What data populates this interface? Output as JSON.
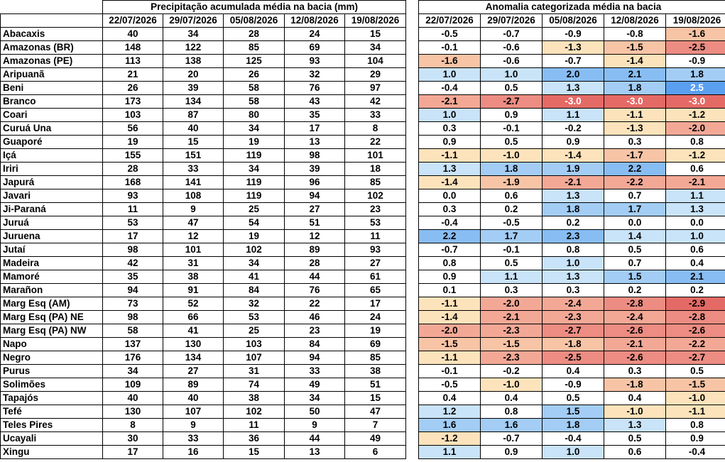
{
  "precip_title": "Precipitação acumulada média na bacia (mm)",
  "anom_title": "Anomalia categorizada média na bacia",
  "dates": [
    "22/07/2026",
    "29/07/2026",
    "05/08/2026",
    "12/08/2026",
    "19/08/2026"
  ],
  "rows": [
    {
      "name": "Abacaxis",
      "precip": [
        "40",
        "34",
        "28",
        "24",
        "15"
      ],
      "anom": [
        "-0.5",
        "-0.7",
        "-0.9",
        "-0.8",
        "-1.6"
      ]
    },
    {
      "name": "Amazonas (BR)",
      "precip": [
        "148",
        "122",
        "85",
        "69",
        "34"
      ],
      "anom": [
        "-0.1",
        "-0.6",
        "-1.3",
        "-1.5",
        "-2.5"
      ]
    },
    {
      "name": "Amazonas (PE)",
      "precip": [
        "113",
        "138",
        "125",
        "93",
        "104"
      ],
      "anom": [
        "-1.6",
        "-0.6",
        "-0.7",
        "-1.4",
        "-0.9"
      ]
    },
    {
      "name": "Aripuanã",
      "precip": [
        "21",
        "20",
        "26",
        "32",
        "29"
      ],
      "anom": [
        "1.0",
        "1.0",
        "2.0",
        "2.1",
        "1.8"
      ]
    },
    {
      "name": "Beni",
      "precip": [
        "26",
        "39",
        "58",
        "76",
        "97"
      ],
      "anom": [
        "-0.4",
        "0.5",
        "1.3",
        "1.8",
        "2.5"
      ]
    },
    {
      "name": "Branco",
      "precip": [
        "173",
        "134",
        "58",
        "43",
        "42"
      ],
      "anom": [
        "-2.1",
        "-2.7",
        "-3.0",
        "-3.0",
        "-3.0"
      ]
    },
    {
      "name": "Coari",
      "precip": [
        "103",
        "87",
        "80",
        "35",
        "33"
      ],
      "anom": [
        "1.0",
        "0.9",
        "1.1",
        "-1.1",
        "-1.2"
      ]
    },
    {
      "name": "Curuá Una",
      "precip": [
        "56",
        "40",
        "34",
        "17",
        "8"
      ],
      "anom": [
        "0.3",
        "-0.1",
        "-0.2",
        "-1.3",
        "-2.0"
      ]
    },
    {
      "name": "Guaporé",
      "precip": [
        "19",
        "15",
        "19",
        "13",
        "22"
      ],
      "anom": [
        "0.9",
        "0.5",
        "0.9",
        "0.3",
        "0.8"
      ]
    },
    {
      "name": "Içá",
      "precip": [
        "155",
        "151",
        "119",
        "98",
        "101"
      ],
      "anom": [
        "-1.1",
        "-1.0",
        "-1.4",
        "-1.7",
        "-1.2"
      ]
    },
    {
      "name": "Iriri",
      "precip": [
        "28",
        "33",
        "34",
        "39",
        "18"
      ],
      "anom": [
        "1.3",
        "1.8",
        "1.9",
        "2.2",
        "0.6"
      ]
    },
    {
      "name": "Japurá",
      "precip": [
        "168",
        "141",
        "119",
        "96",
        "85"
      ],
      "anom": [
        "-1.4",
        "-1.9",
        "-2.1",
        "-2.2",
        "-2.1"
      ]
    },
    {
      "name": "Javari",
      "precip": [
        "93",
        "108",
        "119",
        "94",
        "102"
      ],
      "anom": [
        "0.0",
        "0.6",
        "1.3",
        "0.7",
        "1.1"
      ]
    },
    {
      "name": "Ji-Paraná",
      "precip": [
        "11",
        "9",
        "25",
        "27",
        "23"
      ],
      "anom": [
        "0.3",
        "0.2",
        "1.8",
        "1.7",
        "1.3"
      ]
    },
    {
      "name": "Juruá",
      "precip": [
        "53",
        "47",
        "54",
        "51",
        "53"
      ],
      "anom": [
        "-0.4",
        "-0.5",
        "0.2",
        "0.0",
        "0.0"
      ]
    },
    {
      "name": "Juruena",
      "precip": [
        "17",
        "12",
        "19",
        "12",
        "11"
      ],
      "anom": [
        "2.2",
        "1.7",
        "2.3",
        "1.4",
        "1.0"
      ]
    },
    {
      "name": "Jutaí",
      "precip": [
        "98",
        "101",
        "102",
        "89",
        "93"
      ],
      "anom": [
        "-0.7",
        "-0.1",
        "0.8",
        "0.5",
        "0.6"
      ]
    },
    {
      "name": "Madeira",
      "precip": [
        "42",
        "31",
        "34",
        "28",
        "27"
      ],
      "anom": [
        "0.8",
        "0.5",
        "1.0",
        "0.7",
        "0.4"
      ]
    },
    {
      "name": "Mamoré",
      "precip": [
        "35",
        "38",
        "41",
        "44",
        "61"
      ],
      "anom": [
        "0.9",
        "1.1",
        "1.3",
        "1.5",
        "2.1"
      ]
    },
    {
      "name": "Marañon",
      "precip": [
        "94",
        "91",
        "84",
        "76",
        "65"
      ],
      "anom": [
        "0.1",
        "0.3",
        "0.3",
        "0.2",
        "0.2"
      ]
    },
    {
      "name": "Marg Esq (AM)",
      "precip": [
        "73",
        "52",
        "32",
        "22",
        "17"
      ],
      "anom": [
        "-1.1",
        "-2.0",
        "-2.4",
        "-2.8",
        "-2.9"
      ]
    },
    {
      "name": "Marg Esq (PA) NE",
      "precip": [
        "98",
        "66",
        "53",
        "46",
        "24"
      ],
      "anom": [
        "-1.4",
        "-2.1",
        "-2.3",
        "-2.4",
        "-2.8"
      ]
    },
    {
      "name": "Marg Esq (PA) NW",
      "precip": [
        "58",
        "41",
        "25",
        "23",
        "19"
      ],
      "anom": [
        "-2.0",
        "-2.3",
        "-2.7",
        "-2.6",
        "-2.6"
      ]
    },
    {
      "name": "Napo",
      "precip": [
        "137",
        "130",
        "103",
        "84",
        "69"
      ],
      "anom": [
        "-1.5",
        "-1.5",
        "-1.8",
        "-2.1",
        "-2.2"
      ]
    },
    {
      "name": "Negro",
      "precip": [
        "176",
        "134",
        "107",
        "94",
        "85"
      ],
      "anom": [
        "-1.1",
        "-2.3",
        "-2.5",
        "-2.6",
        "-2.7"
      ]
    },
    {
      "name": "Purus",
      "precip": [
        "34",
        "27",
        "31",
        "33",
        "38"
      ],
      "anom": [
        "-0.1",
        "-0.2",
        "0.4",
        "0.3",
        "0.5"
      ]
    },
    {
      "name": "Solimões",
      "precip": [
        "109",
        "89",
        "74",
        "49",
        "51"
      ],
      "anom": [
        "-0.5",
        "-1.0",
        "-0.9",
        "-1.8",
        "-1.5"
      ]
    },
    {
      "name": "Tapajós",
      "precip": [
        "40",
        "40",
        "38",
        "34",
        "15"
      ],
      "anom": [
        "0.4",
        "0.4",
        "0.5",
        "0.4",
        "-1.0"
      ]
    },
    {
      "name": "Tefé",
      "precip": [
        "130",
        "107",
        "102",
        "50",
        "47"
      ],
      "anom": [
        "1.2",
        "0.8",
        "1.5",
        "-1.0",
        "-1.1"
      ]
    },
    {
      "name": "Teles Pires",
      "precip": [
        "8",
        "9",
        "11",
        "9",
        "7"
      ],
      "anom": [
        "1.6",
        "1.6",
        "1.8",
        "1.3",
        "0.8"
      ]
    },
    {
      "name": "Ucayali",
      "precip": [
        "30",
        "33",
        "36",
        "44",
        "49"
      ],
      "anom": [
        "-1.2",
        "-0.7",
        "-0.4",
        "0.5",
        "0.9"
      ]
    },
    {
      "name": "Xingu",
      "precip": [
        "17",
        "16",
        "15",
        "13",
        "6"
      ],
      "anom": [
        "1.1",
        "0.9",
        "1.0",
        "0.6",
        "-0.4"
      ]
    }
  ]
}
